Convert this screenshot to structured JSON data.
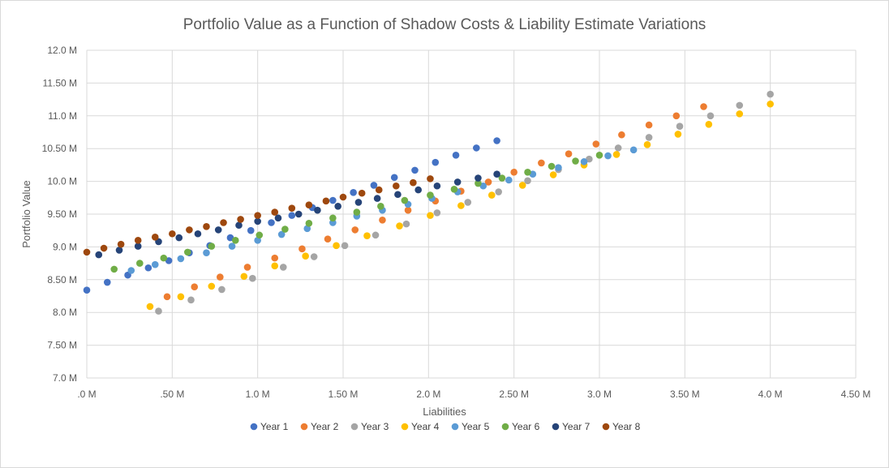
{
  "chart_data": {
    "type": "scatter",
    "title": "Portfolio Value as a Function of Shadow Costs & Liability Estimate Variations",
    "xlabel": "Liabilities",
    "ylabel": "Portfolio Value",
    "xlim": [
      0,
      4.5
    ],
    "ylim": [
      7.0,
      12.0
    ],
    "x_ticks": [
      {
        "v": 0,
        "label": ".0 M"
      },
      {
        "v": 0.5,
        "label": ".50 M"
      },
      {
        "v": 1.0,
        "label": "1.0 M"
      },
      {
        "v": 1.5,
        "label": "1.50 M"
      },
      {
        "v": 2.0,
        "label": "2.0 M"
      },
      {
        "v": 2.5,
        "label": "2.50 M"
      },
      {
        "v": 3.0,
        "label": "3.0 M"
      },
      {
        "v": 3.5,
        "label": "3.50 M"
      },
      {
        "v": 4.0,
        "label": "4.0 M"
      },
      {
        "v": 4.5,
        "label": "4.50 M"
      }
    ],
    "y_ticks": [
      {
        "v": 7.0,
        "label": "7.0 M"
      },
      {
        "v": 7.5,
        "label": "7.50 M"
      },
      {
        "v": 8.0,
        "label": "8.0 M"
      },
      {
        "v": 8.5,
        "label": "8.50 M"
      },
      {
        "v": 9.0,
        "label": "9.0 M"
      },
      {
        "v": 9.5,
        "label": "9.50 M"
      },
      {
        "v": 10.0,
        "label": "10.0 M"
      },
      {
        "v": 10.5,
        "label": "10.50 M"
      },
      {
        "v": 11.0,
        "label": "11.0 M"
      },
      {
        "v": 11.5,
        "label": "11.50 M"
      },
      {
        "v": 12.0,
        "label": "12.0 M"
      }
    ],
    "grid": true,
    "legend_position": "bottom",
    "series": [
      {
        "name": "Year 1",
        "color": "#4472C4",
        "points": [
          [
            0.0,
            8.34
          ],
          [
            0.12,
            8.46
          ],
          [
            0.24,
            8.57
          ],
          [
            0.36,
            8.68
          ],
          [
            0.48,
            8.79
          ],
          [
            0.6,
            8.91
          ],
          [
            0.72,
            9.02
          ],
          [
            0.84,
            9.14
          ],
          [
            0.96,
            9.25
          ],
          [
            1.08,
            9.37
          ],
          [
            1.2,
            9.48
          ],
          [
            1.32,
            9.6
          ],
          [
            1.44,
            9.71
          ],
          [
            1.56,
            9.83
          ],
          [
            1.68,
            9.94
          ],
          [
            1.8,
            10.06
          ],
          [
            1.92,
            10.17
          ],
          [
            2.04,
            10.29
          ],
          [
            2.16,
            10.4
          ],
          [
            2.28,
            10.51
          ],
          [
            2.4,
            10.62
          ]
        ]
      },
      {
        "name": "Year 2",
        "color": "#ED7D31",
        "points": [
          [
            0.47,
            8.24
          ],
          [
            0.63,
            8.39
          ],
          [
            0.78,
            8.54
          ],
          [
            0.94,
            8.69
          ],
          [
            1.1,
            8.83
          ],
          [
            1.26,
            8.97
          ],
          [
            1.41,
            9.12
          ],
          [
            1.57,
            9.26
          ],
          [
            1.73,
            9.41
          ],
          [
            1.88,
            9.56
          ],
          [
            2.04,
            9.7
          ],
          [
            2.19,
            9.85
          ],
          [
            2.35,
            9.99
          ],
          [
            2.5,
            10.14
          ],
          [
            2.66,
            10.28
          ],
          [
            2.82,
            10.42
          ],
          [
            2.98,
            10.57
          ],
          [
            3.13,
            10.71
          ],
          [
            3.29,
            10.86
          ],
          [
            3.45,
            11.0
          ],
          [
            3.61,
            11.14
          ]
        ]
      },
      {
        "name": "Year 3",
        "color": "#A5A5A5",
        "points": [
          [
            0.42,
            8.02
          ],
          [
            0.61,
            8.19
          ],
          [
            0.79,
            8.35
          ],
          [
            0.97,
            8.52
          ],
          [
            1.15,
            8.69
          ],
          [
            1.33,
            8.85
          ],
          [
            1.51,
            9.02
          ],
          [
            1.69,
            9.18
          ],
          [
            1.87,
            9.35
          ],
          [
            2.05,
            9.52
          ],
          [
            2.23,
            9.68
          ],
          [
            2.41,
            9.84
          ],
          [
            2.58,
            10.01
          ],
          [
            2.76,
            10.18
          ],
          [
            2.94,
            10.34
          ],
          [
            3.11,
            10.51
          ],
          [
            3.29,
            10.67
          ],
          [
            3.47,
            10.84
          ],
          [
            3.65,
            11.0
          ],
          [
            3.82,
            11.16
          ],
          [
            4.0,
            11.33
          ]
        ]
      },
      {
        "name": "Year 4",
        "color": "#FFC000",
        "points": [
          [
            0.37,
            8.09
          ],
          [
            0.55,
            8.24
          ],
          [
            0.73,
            8.4
          ],
          [
            0.92,
            8.55
          ],
          [
            1.1,
            8.71
          ],
          [
            1.28,
            8.86
          ],
          [
            1.46,
            9.02
          ],
          [
            1.64,
            9.17
          ],
          [
            1.83,
            9.32
          ],
          [
            2.01,
            9.48
          ],
          [
            2.19,
            9.63
          ],
          [
            2.37,
            9.79
          ],
          [
            2.55,
            9.94
          ],
          [
            2.73,
            10.1
          ],
          [
            2.91,
            10.25
          ],
          [
            3.1,
            10.41
          ],
          [
            3.28,
            10.56
          ],
          [
            3.46,
            10.72
          ],
          [
            3.64,
            10.87
          ],
          [
            3.82,
            11.03
          ],
          [
            4.0,
            11.18
          ]
        ]
      },
      {
        "name": "Year 5",
        "color": "#5B9BD5",
        "points": [
          [
            0.26,
            8.64
          ],
          [
            0.4,
            8.73
          ],
          [
            0.55,
            8.82
          ],
          [
            0.7,
            8.91
          ],
          [
            0.85,
            9.01
          ],
          [
            1.0,
            9.1
          ],
          [
            1.14,
            9.19
          ],
          [
            1.29,
            9.28
          ],
          [
            1.44,
            9.37
          ],
          [
            1.58,
            9.47
          ],
          [
            1.73,
            9.56
          ],
          [
            1.88,
            9.65
          ],
          [
            2.02,
            9.74
          ],
          [
            2.17,
            9.84
          ],
          [
            2.32,
            9.93
          ],
          [
            2.47,
            10.02
          ],
          [
            2.61,
            10.11
          ],
          [
            2.76,
            10.21
          ],
          [
            2.91,
            10.3
          ],
          [
            3.05,
            10.39
          ],
          [
            3.2,
            10.48
          ]
        ]
      },
      {
        "name": "Year 6",
        "color": "#70AD47",
        "points": [
          [
            0.16,
            8.66
          ],
          [
            0.31,
            8.75
          ],
          [
            0.45,
            8.83
          ],
          [
            0.59,
            8.92
          ],
          [
            0.73,
            9.01
          ],
          [
            0.87,
            9.1
          ],
          [
            1.01,
            9.18
          ],
          [
            1.16,
            9.27
          ],
          [
            1.3,
            9.36
          ],
          [
            1.44,
            9.44
          ],
          [
            1.58,
            9.53
          ],
          [
            1.72,
            9.62
          ],
          [
            1.86,
            9.71
          ],
          [
            2.01,
            9.79
          ],
          [
            2.15,
            9.88
          ],
          [
            2.29,
            9.97
          ],
          [
            2.43,
            10.05
          ],
          [
            2.58,
            10.14
          ],
          [
            2.72,
            10.23
          ],
          [
            2.86,
            10.31
          ],
          [
            3.0,
            10.4
          ]
        ]
      },
      {
        "name": "Year 7",
        "color": "#264478",
        "points": [
          [
            0.07,
            8.88
          ],
          [
            0.19,
            8.95
          ],
          [
            0.3,
            9.01
          ],
          [
            0.42,
            9.08
          ],
          [
            0.54,
            9.14
          ],
          [
            0.65,
            9.2
          ],
          [
            0.77,
            9.26
          ],
          [
            0.89,
            9.33
          ],
          [
            1.0,
            9.39
          ],
          [
            1.12,
            9.44
          ],
          [
            1.24,
            9.5
          ],
          [
            1.35,
            9.56
          ],
          [
            1.47,
            9.62
          ],
          [
            1.59,
            9.68
          ],
          [
            1.7,
            9.74
          ],
          [
            1.82,
            9.8
          ],
          [
            1.94,
            9.87
          ],
          [
            2.05,
            9.93
          ],
          [
            2.17,
            9.99
          ],
          [
            2.29,
            10.05
          ],
          [
            2.4,
            10.11
          ]
        ]
      },
      {
        "name": "Year 8",
        "color": "#9E480E",
        "points": [
          [
            0.0,
            8.92
          ],
          [
            0.1,
            8.98
          ],
          [
            0.2,
            9.04
          ],
          [
            0.3,
            9.1
          ],
          [
            0.4,
            9.15
          ],
          [
            0.5,
            9.2
          ],
          [
            0.6,
            9.26
          ],
          [
            0.7,
            9.31
          ],
          [
            0.8,
            9.37
          ],
          [
            0.9,
            9.42
          ],
          [
            1.0,
            9.48
          ],
          [
            1.1,
            9.53
          ],
          [
            1.2,
            9.59
          ],
          [
            1.3,
            9.64
          ],
          [
            1.4,
            9.7
          ],
          [
            1.5,
            9.76
          ],
          [
            1.61,
            9.82
          ],
          [
            1.71,
            9.87
          ],
          [
            1.81,
            9.93
          ],
          [
            1.91,
            9.98
          ],
          [
            2.01,
            10.04
          ]
        ]
      }
    ]
  }
}
